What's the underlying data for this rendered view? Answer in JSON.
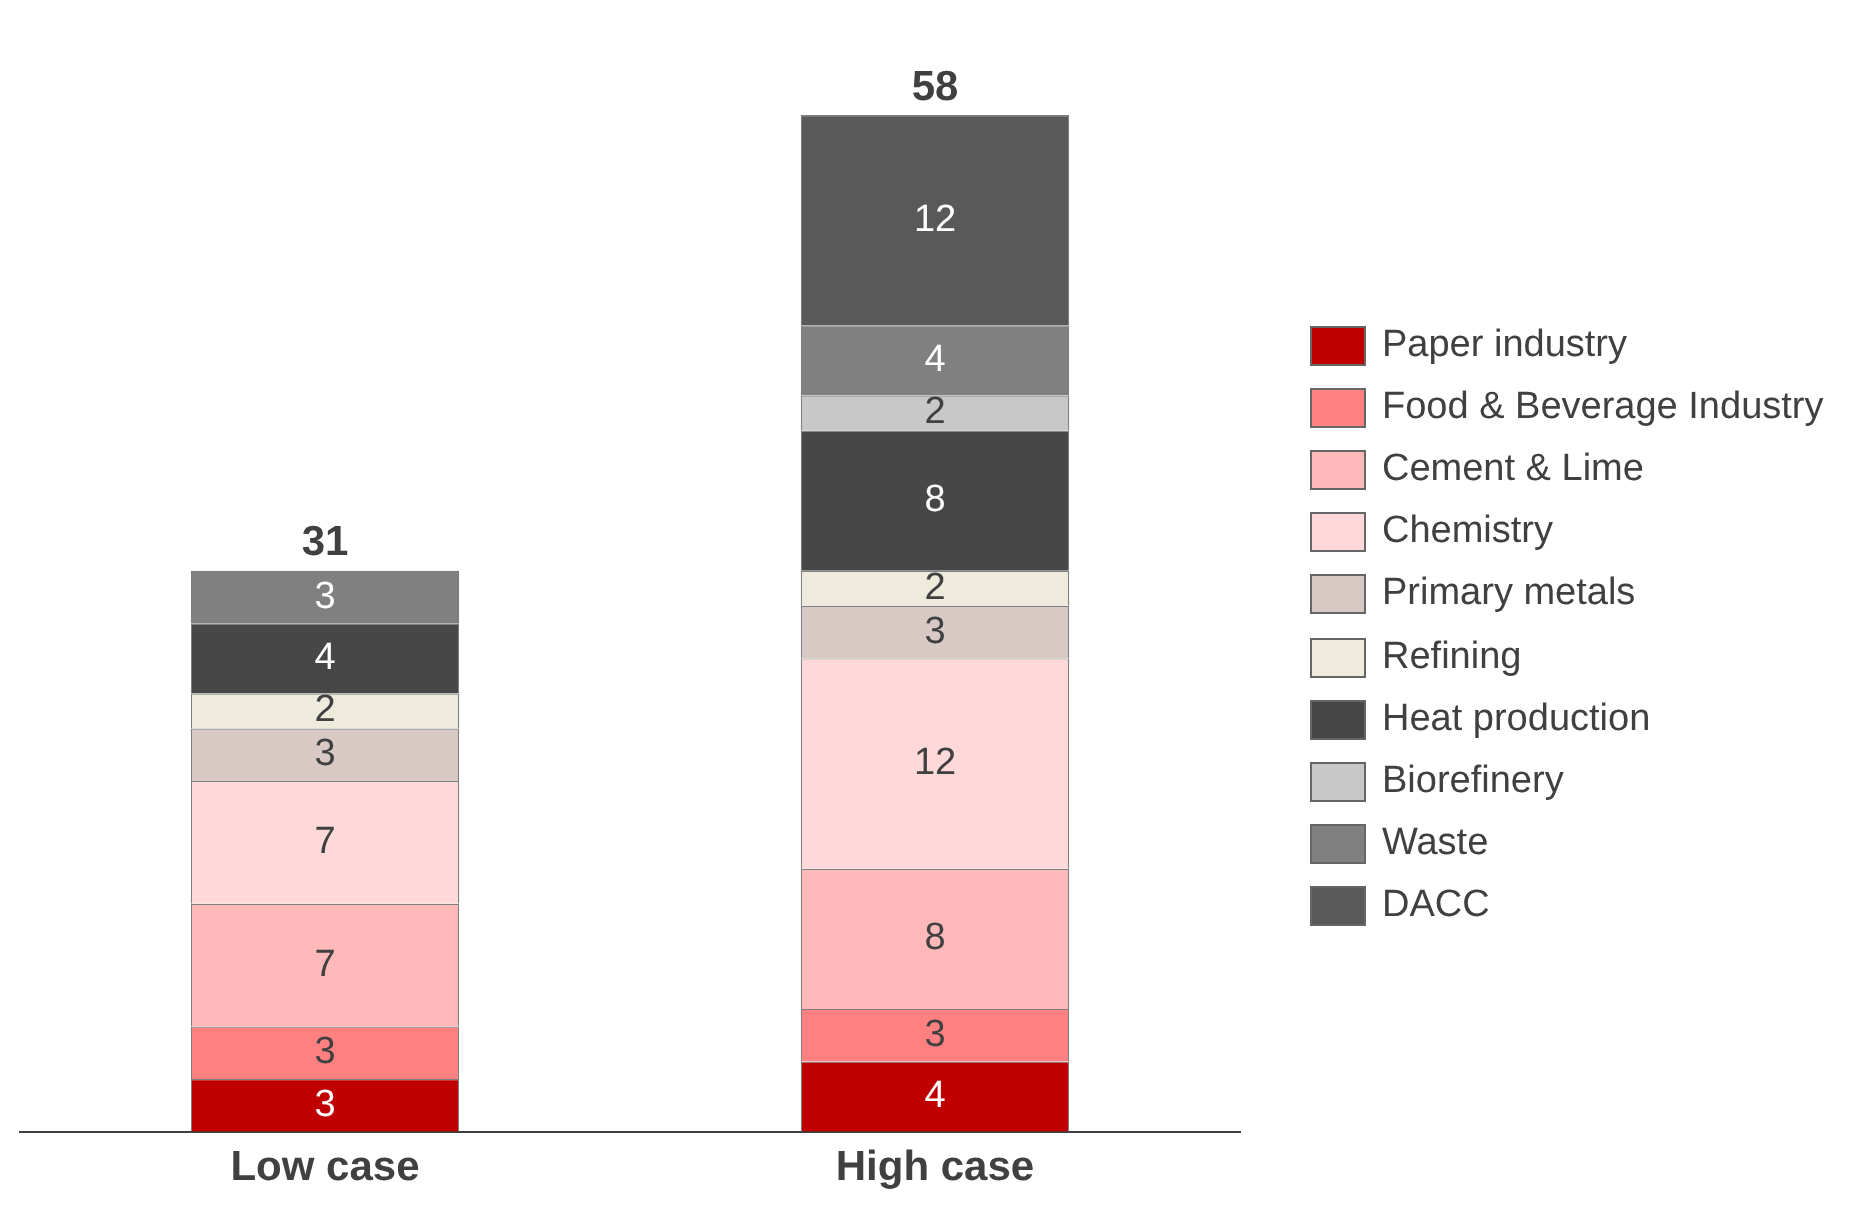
{
  "chart_data": {
    "type": "bar",
    "stacked": true,
    "categories": [
      "Low case",
      "High case"
    ],
    "series": [
      {
        "name": "Paper industry",
        "color": "#c00000",
        "values": [
          3,
          4
        ]
      },
      {
        "name": "Food & Beverage Industry",
        "color": "#ff8080",
        "values": [
          3,
          3
        ]
      },
      {
        "name": "Cement & Lime",
        "color": "#ffb9b9",
        "values": [
          7,
          8
        ]
      },
      {
        "name": "Chemistry",
        "color": "#ffd9d9",
        "values": [
          7,
          12
        ]
      },
      {
        "name": "Primary metals",
        "color": "#d9c9c5",
        "values": [
          3,
          3
        ]
      },
      {
        "name": "Refining",
        "color": "#eeeadc",
        "values": [
          2,
          2
        ]
      },
      {
        "name": "Heat production",
        "color": "#474747",
        "values": [
          4,
          8
        ]
      },
      {
        "name": "Biorefinery",
        "color": "#c8c8c8",
        "values": [
          null,
          2
        ]
      },
      {
        "name": "Waste",
        "color": "#808080",
        "values": [
          3,
          4
        ]
      },
      {
        "name": "DACC",
        "color": "#595959",
        "values": [
          null,
          12
        ]
      }
    ],
    "data_labels": true,
    "totals": [
      "31",
      "58"
    ],
    "legend": "right"
  }
}
